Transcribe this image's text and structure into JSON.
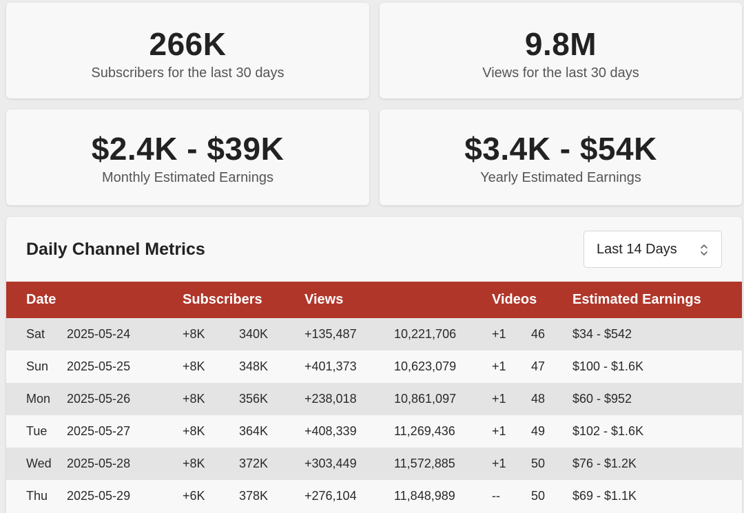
{
  "summary": {
    "subscribers": {
      "value": "266K",
      "label": "Subscribers for the last 30 days"
    },
    "views": {
      "value": "9.8M",
      "label": "Views for the last 30 days"
    },
    "monthly": {
      "value": "$2.4K - $39K",
      "label": "Monthly Estimated Earnings"
    },
    "yearly": {
      "value": "$3.4K - $54K",
      "label": "Yearly Estimated Earnings"
    }
  },
  "metrics": {
    "title": "Daily Channel Metrics",
    "range_select": {
      "selected": "Last 14 Days",
      "icon": "chevron-up-down-icon"
    },
    "headers": {
      "date": "Date",
      "subscribers": "Subscribers",
      "views": "Views",
      "videos": "Videos",
      "earnings": "Estimated Earnings"
    },
    "rows": [
      {
        "day": "Sat",
        "date": "2025-05-24",
        "sub_delta": "+8K",
        "sub_total": "340K",
        "views_delta": "+135,487",
        "views_total": "10,221,706",
        "videos_delta": "+1",
        "videos_total": "46",
        "earnings": "$34 - $542"
      },
      {
        "day": "Sun",
        "date": "2025-05-25",
        "sub_delta": "+8K",
        "sub_total": "348K",
        "views_delta": "+401,373",
        "views_total": "10,623,079",
        "videos_delta": "+1",
        "videos_total": "47",
        "earnings": "$100 - $1.6K"
      },
      {
        "day": "Mon",
        "date": "2025-05-26",
        "sub_delta": "+8K",
        "sub_total": "356K",
        "views_delta": "+238,018",
        "views_total": "10,861,097",
        "videos_delta": "+1",
        "videos_total": "48",
        "earnings": "$60 - $952"
      },
      {
        "day": "Tue",
        "date": "2025-05-27",
        "sub_delta": "+8K",
        "sub_total": "364K",
        "views_delta": "+408,339",
        "views_total": "11,269,436",
        "videos_delta": "+1",
        "videos_total": "49",
        "earnings": "$102 - $1.6K"
      },
      {
        "day": "Wed",
        "date": "2025-05-28",
        "sub_delta": "+8K",
        "sub_total": "372K",
        "views_delta": "+303,449",
        "views_total": "11,572,885",
        "videos_delta": "+1",
        "videos_total": "50",
        "earnings": "$76 - $1.2K"
      },
      {
        "day": "Thu",
        "date": "2025-05-29",
        "sub_delta": "+6K",
        "sub_total": "378K",
        "views_delta": "+276,104",
        "views_total": "11,848,989",
        "videos_delta": "--",
        "videos_total": "50",
        "earnings": "$69 - $1.1K"
      }
    ]
  },
  "colors": {
    "header_red": "#b0362a",
    "positive_green": "#2e7d32",
    "row_stripe": "#e4e4e4",
    "card_bg": "#f8f8f8"
  }
}
